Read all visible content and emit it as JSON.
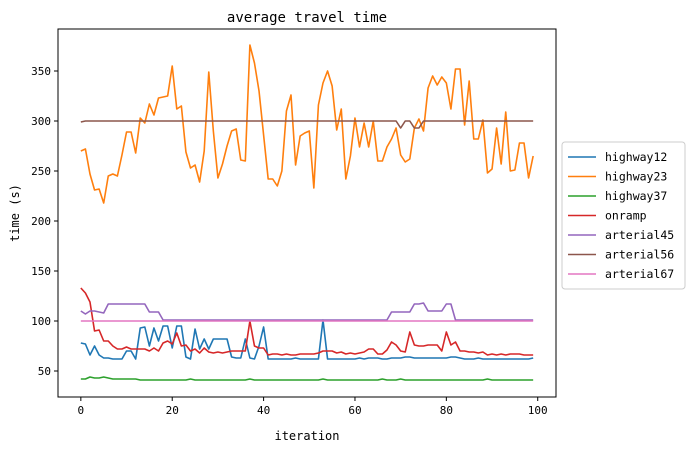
{
  "chart_data": {
    "type": "line",
    "title": "average travel time",
    "xlabel": "iteration",
    "ylabel": "time (s)",
    "xlim": [
      -5,
      104
    ],
    "ylim": [
      24,
      392
    ],
    "xticks": [
      0,
      20,
      40,
      60,
      80,
      100
    ],
    "yticks": [
      50,
      100,
      150,
      200,
      250,
      300,
      350
    ],
    "grid": false,
    "legend_position": "center-right-outside",
    "x": [
      0,
      1,
      2,
      3,
      4,
      5,
      6,
      7,
      8,
      9,
      10,
      11,
      12,
      13,
      14,
      15,
      16,
      17,
      18,
      19,
      20,
      21,
      22,
      23,
      24,
      25,
      26,
      27,
      28,
      29,
      30,
      31,
      32,
      33,
      34,
      35,
      36,
      37,
      38,
      39,
      40,
      41,
      42,
      43,
      44,
      45,
      46,
      47,
      48,
      49,
      50,
      51,
      52,
      53,
      54,
      55,
      56,
      57,
      58,
      59,
      60,
      61,
      62,
      63,
      64,
      65,
      66,
      67,
      68,
      69,
      70,
      71,
      72,
      73,
      74,
      75,
      76,
      77,
      78,
      79,
      80,
      81,
      82,
      83,
      84,
      85,
      86,
      87,
      88,
      89,
      90,
      91,
      92,
      93,
      94,
      95,
      96,
      97,
      98,
      99
    ],
    "series": [
      {
        "name": "highway12",
        "color": "#1f77b4",
        "values": [
          78,
          77,
          66,
          75,
          66,
          63,
          63,
          62,
          62,
          62,
          70,
          70,
          62,
          93,
          94,
          75,
          93,
          80,
          95,
          95,
          73,
          95,
          95,
          64,
          62,
          92,
          72,
          82,
          72,
          82,
          82,
          82,
          82,
          64,
          63,
          63,
          82,
          63,
          62,
          75,
          94,
          62,
          62,
          62,
          62,
          62,
          62,
          63,
          62,
          62,
          62,
          62,
          62,
          101,
          62,
          62,
          62,
          62,
          62,
          62,
          62,
          63,
          62,
          63,
          63,
          63,
          62,
          62,
          63,
          63,
          63,
          64,
          64,
          63,
          63,
          63,
          63,
          63,
          63,
          63,
          63,
          64,
          64,
          63,
          62,
          62,
          62,
          63,
          62,
          62,
          62,
          62,
          62,
          62,
          62,
          62,
          62,
          62,
          62,
          63
        ]
      },
      {
        "name": "highway23",
        "color": "#ff7f0e",
        "values": [
          270,
          272,
          247,
          231,
          232,
          218,
          245,
          247,
          245,
          266,
          289,
          289,
          268,
          303,
          298,
          317,
          306,
          323,
          324,
          325,
          355,
          312,
          315,
          269,
          253,
          256,
          239,
          270,
          349,
          290,
          243,
          257,
          275,
          290,
          292,
          261,
          260,
          376,
          358,
          330,
          286,
          242,
          242,
          235,
          250,
          310,
          326,
          256,
          285,
          288,
          290,
          233,
          316,
          338,
          350,
          335,
          291,
          312,
          242,
          265,
          303,
          274,
          298,
          274,
          300,
          260,
          260,
          274,
          282,
          293,
          266,
          259,
          262,
          293,
          302,
          290,
          333,
          345,
          336,
          344,
          338,
          312,
          352,
          352,
          296,
          340,
          282,
          282,
          301,
          248,
          252,
          293,
          257,
          309,
          250,
          251,
          278,
          278,
          243,
          265
        ]
      },
      {
        "name": "highway37",
        "color": "#2ca02c",
        "values": [
          42,
          42,
          44,
          43,
          43,
          44,
          43,
          42,
          42,
          42,
          42,
          42,
          42,
          41,
          41,
          41,
          41,
          41,
          41,
          41,
          41,
          41,
          41,
          41,
          42,
          41,
          41,
          41,
          41,
          41,
          41,
          41,
          41,
          41,
          41,
          41,
          41,
          42,
          41,
          41,
          41,
          41,
          41,
          41,
          41,
          41,
          41,
          41,
          41,
          41,
          41,
          41,
          41,
          42,
          41,
          41,
          41,
          41,
          41,
          41,
          41,
          41,
          41,
          41,
          41,
          41,
          42,
          41,
          41,
          41,
          42,
          41,
          41,
          41,
          41,
          41,
          41,
          41,
          41,
          41,
          41,
          41,
          41,
          41,
          41,
          41,
          41,
          41,
          41,
          42,
          41,
          41,
          41,
          41,
          41,
          41,
          41,
          41,
          41,
          41
        ]
      },
      {
        "name": "onramp",
        "color": "#d62728",
        "values": [
          133,
          128,
          119,
          90,
          91,
          80,
          80,
          75,
          72,
          72,
          74,
          72,
          72,
          72,
          72,
          70,
          73,
          70,
          78,
          80,
          77,
          88,
          75,
          76,
          70,
          72,
          68,
          73,
          69,
          68,
          69,
          68,
          69,
          70,
          70,
          70,
          70,
          100,
          75,
          73,
          73,
          66,
          67,
          67,
          66,
          67,
          66,
          66,
          67,
          67,
          67,
          67,
          68,
          70,
          70,
          70,
          68,
          69,
          67,
          68,
          67,
          68,
          69,
          72,
          72,
          67,
          67,
          71,
          79,
          76,
          70,
          69,
          89,
          76,
          75,
          75,
          76,
          76,
          76,
          70,
          89,
          76,
          79,
          70,
          70,
          69,
          69,
          68,
          69,
          66,
          67,
          66,
          67,
          66,
          67,
          67,
          67,
          66,
          66,
          66
        ]
      },
      {
        "name": "arterial45",
        "color": "#9467bd",
        "values": [
          110,
          107,
          110,
          110,
          109,
          108,
          117,
          117,
          117,
          117,
          117,
          117,
          117,
          117,
          117,
          109,
          109,
          109,
          101,
          101,
          101,
          101,
          101,
          101,
          101,
          101,
          101,
          101,
          101,
          101,
          101,
          101,
          101,
          101,
          101,
          101,
          101,
          101,
          101,
          101,
          101,
          101,
          101,
          101,
          101,
          101,
          101,
          101,
          101,
          101,
          101,
          101,
          101,
          101,
          101,
          101,
          101,
          101,
          101,
          101,
          101,
          101,
          101,
          101,
          101,
          101,
          101,
          101,
          109,
          109,
          109,
          109,
          109,
          117,
          117,
          118,
          110,
          110,
          110,
          110,
          117,
          117,
          101,
          101,
          101,
          101,
          101,
          101,
          101,
          101,
          101,
          101,
          101,
          101,
          101,
          101,
          101,
          101,
          101,
          101
        ]
      },
      {
        "name": "arterial56",
        "color": "#8c564b",
        "values": [
          299,
          300,
          300,
          300,
          300,
          300,
          300,
          300,
          300,
          300,
          300,
          300,
          300,
          300,
          300,
          300,
          300,
          300,
          300,
          300,
          300,
          300,
          300,
          300,
          300,
          300,
          300,
          300,
          300,
          300,
          300,
          300,
          300,
          300,
          300,
          300,
          300,
          300,
          300,
          300,
          300,
          300,
          300,
          300,
          300,
          300,
          300,
          300,
          300,
          300,
          300,
          300,
          300,
          300,
          300,
          300,
          300,
          300,
          300,
          300,
          300,
          300,
          300,
          300,
          300,
          300,
          300,
          300,
          300,
          300,
          293,
          300,
          300,
          293,
          293,
          300,
          300,
          300,
          300,
          300,
          300,
          300,
          300,
          300,
          300,
          300,
          300,
          300,
          300,
          300,
          300,
          300,
          300,
          300,
          300,
          300,
          300,
          300,
          300,
          300
        ]
      },
      {
        "name": "arterial67",
        "color": "#e377c2",
        "values": [
          100,
          100,
          100,
          100,
          100,
          100,
          100,
          100,
          100,
          100,
          100,
          100,
          100,
          100,
          100,
          100,
          100,
          100,
          100,
          100,
          100,
          100,
          100,
          100,
          100,
          100,
          100,
          100,
          100,
          100,
          100,
          100,
          100,
          100,
          100,
          100,
          100,
          100,
          100,
          100,
          100,
          100,
          100,
          100,
          100,
          100,
          100,
          100,
          100,
          100,
          100,
          100,
          100,
          100,
          100,
          100,
          100,
          100,
          100,
          100,
          100,
          100,
          100,
          100,
          100,
          100,
          100,
          100,
          100,
          100,
          100,
          100,
          100,
          100,
          100,
          100,
          100,
          100,
          100,
          100,
          100,
          100,
          100,
          100,
          100,
          100,
          100,
          100,
          100,
          100,
          100,
          100,
          100,
          100,
          100,
          100,
          100,
          100,
          100,
          100
        ]
      }
    ]
  }
}
